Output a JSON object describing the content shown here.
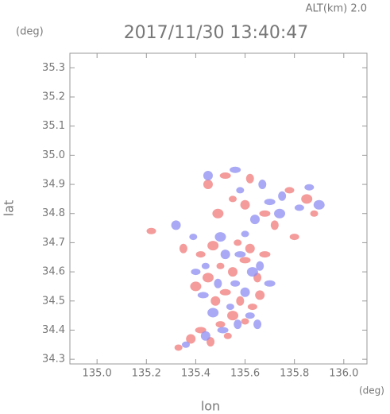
{
  "chart_data": {
    "type": "scatter",
    "title": "2017/11/30 13:40:47",
    "annotation": "ALT(km) 2.0",
    "y_unit": "(deg)",
    "x_unit": "(deg)",
    "x_label": "lon",
    "y_label": "lat",
    "xlim": [
      134.89,
      136.094
    ],
    "ylim": [
      34.284,
      35.35
    ],
    "xticks": [
      {
        "value": 135.0,
        "label": "135.0"
      },
      135.2,
      135.4,
      135.6,
      135.8,
      {
        "value": 136.0,
        "label": "136.0"
      }
    ],
    "yticks": [
      34.3,
      34.4,
      34.5,
      34.6,
      34.7,
      34.8,
      34.9,
      {
        "value": 35.0,
        "label": "35.0"
      },
      35.1,
      35.2,
      35.3
    ],
    "series": [
      {
        "color": "#f07a7a",
        "x": [
          135.33,
          135.38,
          135.42,
          135.46,
          135.5,
          135.55,
          135.6,
          135.48,
          135.52,
          135.58,
          135.63,
          135.45,
          135.5,
          135.55,
          135.6,
          135.65,
          135.42,
          135.47,
          135.57,
          135.62,
          135.68,
          135.35,
          135.22,
          135.49,
          135.55,
          135.6,
          135.68,
          135.72,
          135.78,
          135.85,
          135.88,
          135.45,
          135.52,
          135.62,
          135.8,
          135.4,
          135.53,
          135.66
        ],
        "y": [
          34.34,
          34.37,
          34.4,
          34.36,
          34.42,
          34.45,
          34.43,
          34.5,
          34.53,
          34.5,
          34.48,
          34.58,
          34.62,
          34.6,
          34.64,
          34.58,
          34.66,
          34.69,
          34.7,
          34.68,
          34.66,
          34.68,
          34.74,
          34.8,
          34.85,
          34.83,
          34.8,
          34.76,
          34.88,
          34.85,
          34.8,
          34.9,
          34.93,
          34.92,
          34.72,
          34.55,
          34.38,
          34.52
        ]
      },
      {
        "color": "#8c8cf2",
        "x": [
          135.36,
          135.44,
          135.51,
          135.57,
          135.62,
          135.47,
          135.54,
          135.6,
          135.43,
          135.49,
          135.56,
          135.63,
          135.44,
          135.52,
          135.58,
          135.66,
          135.4,
          135.5,
          135.6,
          135.64,
          135.7,
          135.75,
          135.82,
          135.9,
          135.58,
          135.45,
          135.56,
          135.67,
          135.86,
          135.74,
          135.39,
          135.32,
          135.7,
          135.65
        ],
        "y": [
          34.35,
          34.38,
          34.4,
          34.42,
          34.45,
          34.46,
          34.48,
          34.53,
          34.52,
          34.56,
          34.56,
          34.6,
          34.62,
          34.66,
          34.66,
          34.62,
          34.6,
          34.72,
          34.73,
          34.78,
          34.84,
          34.86,
          34.82,
          34.83,
          34.88,
          34.93,
          34.95,
          34.9,
          34.89,
          34.8,
          34.72,
          34.76,
          34.56,
          34.42
        ]
      }
    ]
  }
}
